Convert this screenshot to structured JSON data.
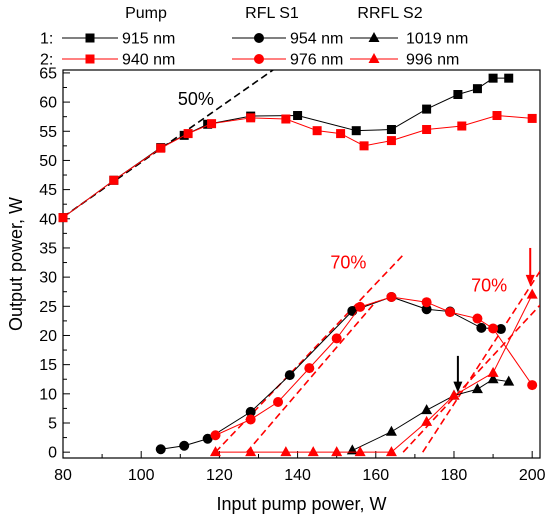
{
  "chart_data": {
    "type": "line",
    "xlabel": "Input pump power, W",
    "ylabel": "Output power, W",
    "xlim": [
      80,
      202
    ],
    "ylim": [
      -1,
      65.5
    ],
    "x_ticks": [
      80,
      100,
      120,
      140,
      160,
      180,
      200
    ],
    "y_ticks": [
      0,
      5,
      10,
      15,
      20,
      25,
      30,
      35,
      40,
      45,
      50,
      55,
      60,
      65
    ],
    "colors": {
      "black": "#000000",
      "red": "#ff0000"
    },
    "legend": {
      "headers": [
        "Pump",
        "RFL S1",
        "RRFL S2"
      ],
      "row_labels": [
        "1:",
        "2:"
      ],
      "rows": [
        [
          "915 nm",
          "954 nm",
          "1019 nm"
        ],
        [
          "940 nm",
          "976 nm",
          "996 nm"
        ]
      ]
    },
    "series": [
      {
        "name": "915 nm",
        "color": "#000000",
        "marker": "square",
        "x": [
          80,
          93,
          105,
          111,
          117,
          128,
          140,
          155,
          164,
          173,
          181,
          186,
          190,
          194
        ],
        "y": [
          40.2,
          46.6,
          52.2,
          54.3,
          56.2,
          57.6,
          57.7,
          55.1,
          55.3,
          58.8,
          61.3,
          62.3,
          64.1,
          64.1
        ]
      },
      {
        "name": "940 nm",
        "color": "#ff0000",
        "marker": "square",
        "x": [
          80,
          93,
          105,
          112,
          118,
          128,
          137,
          145,
          151,
          157,
          164,
          173,
          182,
          191,
          200
        ],
        "y": [
          40.2,
          46.6,
          52.1,
          54.6,
          56.3,
          57.3,
          57.1,
          55.1,
          54.6,
          52.5,
          53.4,
          55.3,
          55.9,
          57.7,
          57.2
        ]
      },
      {
        "name": "954 nm",
        "color": "#000000",
        "marker": "circle",
        "x": [
          105,
          111,
          117,
          128,
          138,
          154,
          164,
          173,
          179,
          187,
          192
        ],
        "y": [
          0.5,
          1.1,
          2.3,
          6.9,
          13.2,
          24.2,
          26.6,
          24.5,
          24.1,
          21.3,
          21.1
        ]
      },
      {
        "name": "976 nm",
        "color": "#ff0000",
        "marker": "circle",
        "x": [
          119,
          128,
          135,
          143,
          150,
          156,
          164,
          173,
          179,
          186,
          190,
          200
        ],
        "y": [
          2.9,
          5.6,
          8.6,
          14.4,
          19.5,
          24.9,
          26.6,
          25.7,
          24.0,
          22.9,
          21.2,
          11.5
        ]
      },
      {
        "name": "1019 nm",
        "color": "#000000",
        "marker": "triangle",
        "x": [
          154,
          164,
          173,
          180,
          186,
          190,
          194
        ],
        "y": [
          0.3,
          3.5,
          7.2,
          9.7,
          10.8,
          12.5,
          12.1
        ]
      },
      {
        "name": "996 nm",
        "color": "#ff0000",
        "marker": "triangle",
        "x": [
          119,
          128,
          137,
          144,
          150,
          156,
          164,
          173,
          180,
          190,
          200
        ],
        "y": [
          0,
          0,
          0,
          0,
          0,
          0,
          0,
          5.2,
          9.7,
          13.6,
          27.0
        ]
      }
    ],
    "fit_lines": [
      {
        "color": "#000000",
        "points": [
          [
            80,
            40.3
          ],
          [
            158,
            76.9
          ]
        ]
      },
      {
        "color": "#ff0000",
        "points": [
          [
            119,
            0
          ],
          [
            167,
            33.8
          ]
        ]
      },
      {
        "color": "#ff0000",
        "points": [
          [
            127,
            0
          ],
          [
            160,
            25.8
          ]
        ]
      },
      {
        "color": "#ff0000",
        "points": [
          [
            167,
            0
          ],
          [
            202,
            25.2
          ]
        ]
      },
      {
        "color": "#ff0000",
        "points": [
          [
            172,
            0
          ],
          [
            202,
            31
          ]
        ]
      }
    ],
    "annotations": [
      {
        "text": "50%",
        "color": "#000000",
        "x": 114,
        "y": 59.5
      },
      {
        "text": "70%",
        "color": "#ff0000",
        "x": 153,
        "y": 31.5
      },
      {
        "text": "70%",
        "color": "#ff0000",
        "x": 189,
        "y": 27.5
      }
    ],
    "arrows": [
      {
        "color": "#000000",
        "x": 181,
        "y_from": 16.5,
        "y_to": 10.2
      },
      {
        "color": "#ff0000",
        "x": 199.5,
        "y_from": 35.0,
        "y_to": 28.5
      }
    ]
  }
}
